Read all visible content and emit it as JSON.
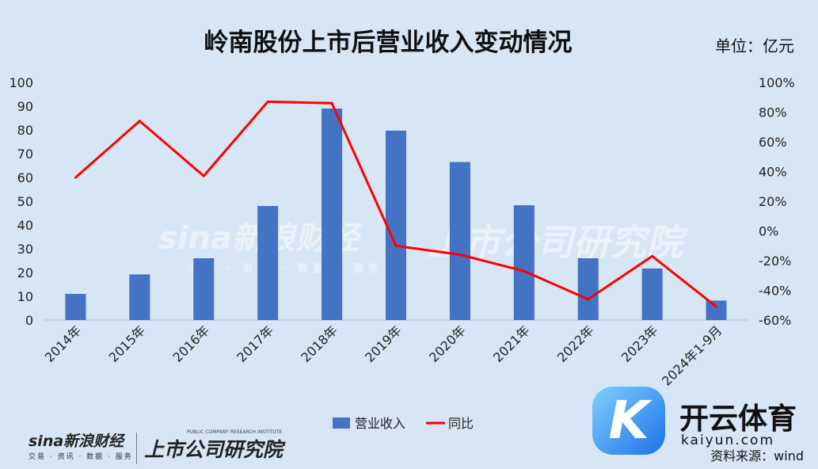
{
  "header": {
    "title": "岭南股份上市后营业收入变动情况",
    "unit": "单位：亿元"
  },
  "footer": {
    "source": "资料来源：wind",
    "sina_logo": "sina新浪财经",
    "sina_sub": "交易 · 资讯 · 数据 · 服务",
    "ssg_logo": "上市公司研究院",
    "ssg_sub": "PUBLIC COMPANY RESEARCH INSTITUTE"
  },
  "watermark": {
    "sina": "sina新浪财经",
    "sina_sub": "交易 · 资讯 · 数据 · 服务",
    "ssg": "上市公司研究院"
  },
  "brand": {
    "mark": "K",
    "name_cn": "开云体育",
    "name_en": "kaiyun.com"
  },
  "colors": {
    "background": "#d6e6f4",
    "bar": "#4472c4",
    "line": "#ff0000"
  },
  "chart_data": {
    "type": "bar",
    "categories": [
      "2014年",
      "2015年",
      "2016年",
      "2017年",
      "2018年",
      "2019年",
      "2020年",
      "2021年",
      "2022年",
      "2023年",
      "2024年1-9月"
    ],
    "series": [
      {
        "name": "营业收入",
        "type": "bar",
        "axis": "left",
        "values": [
          11.0,
          19.2,
          26.0,
          48.0,
          89.0,
          79.7,
          66.5,
          48.3,
          26.0,
          21.7,
          8.2
        ]
      },
      {
        "name": "同比",
        "type": "line",
        "axis": "right",
        "values": [
          36,
          74,
          37,
          87,
          86,
          -10,
          -16,
          -27,
          -46,
          -17,
          -51
        ]
      }
    ],
    "ylim_left": [
      0,
      100
    ],
    "ylim_right": [
      -60,
      100
    ],
    "yticks_left": [
      "0",
      "10",
      "20",
      "30",
      "40",
      "50",
      "60",
      "70",
      "80",
      "90",
      "100"
    ],
    "yticks_right": [
      "-60%",
      "-40%",
      "-20%",
      "0%",
      "20%",
      "40%",
      "60%",
      "80%",
      "100%"
    ],
    "legend_position": "bottom",
    "grid": false
  }
}
